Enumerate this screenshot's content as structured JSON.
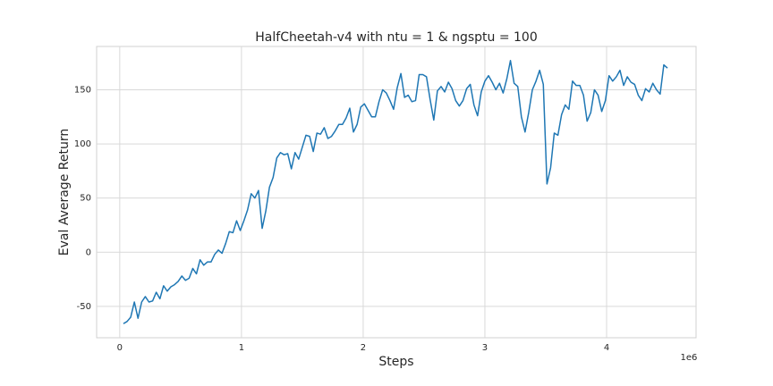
{
  "chart_data": {
    "type": "line",
    "title": "HalfCheetah-v4 with ntu = 1 & ngsptu = 100",
    "x_label": "Steps",
    "y_label": "Eval Average Return",
    "x_offset_label": "1e6",
    "x": [
      0.03,
      0.06,
      0.09,
      0.12,
      0.15,
      0.18,
      0.21,
      0.24,
      0.27,
      0.3,
      0.33,
      0.36,
      0.39,
      0.42,
      0.45,
      0.48,
      0.51,
      0.54,
      0.57,
      0.6,
      0.63,
      0.66,
      0.69,
      0.72,
      0.75,
      0.78,
      0.81,
      0.84,
      0.87,
      0.9,
      0.93,
      0.96,
      0.99,
      1.02,
      1.05,
      1.08,
      1.11,
      1.14,
      1.17,
      1.2,
      1.23,
      1.26,
      1.29,
      1.32,
      1.35,
      1.38,
      1.41,
      1.44,
      1.47,
      1.5,
      1.53,
      1.56,
      1.59,
      1.62,
      1.65,
      1.68,
      1.71,
      1.74,
      1.77,
      1.8,
      1.83,
      1.86,
      1.89,
      1.92,
      1.95,
      1.98,
      2.01,
      2.04,
      2.07,
      2.1,
      2.13,
      2.16,
      2.19,
      2.22,
      2.25,
      2.28,
      2.31,
      2.34,
      2.37,
      2.4,
      2.43,
      2.46,
      2.49,
      2.52,
      2.55,
      2.58,
      2.61,
      2.64,
      2.67,
      2.7,
      2.73,
      2.76,
      2.79,
      2.82,
      2.85,
      2.88,
      2.91,
      2.94,
      2.97,
      3.0,
      3.03,
      3.06,
      3.09,
      3.12,
      3.15,
      3.18,
      3.21,
      3.24,
      3.27,
      3.3,
      3.33,
      3.36,
      3.39,
      3.42,
      3.45,
      3.48,
      3.51,
      3.54,
      3.57,
      3.6,
      3.63,
      3.66,
      3.69,
      3.72,
      3.75,
      3.78,
      3.81,
      3.84,
      3.87,
      3.9,
      3.93,
      3.96,
      3.99,
      4.02,
      4.05,
      4.08,
      4.11,
      4.14,
      4.17,
      4.2,
      4.23,
      4.26,
      4.29,
      4.32,
      4.35,
      4.38,
      4.41,
      4.44,
      4.47,
      4.5
    ],
    "series": [
      {
        "name": "Eval Average Return",
        "color": "#1f77b4",
        "values": [
          -66,
          -64,
          -60,
          -46,
          -61,
          -46,
          -41,
          -46,
          -45,
          -37,
          -43,
          -31,
          -36,
          -32,
          -30,
          -27,
          -22,
          -26,
          -24,
          -15,
          -20,
          -7,
          -12,
          -9,
          -9,
          -2,
          2,
          -1,
          8,
          19,
          18,
          29,
          20,
          29,
          39,
          54,
          50,
          57,
          22,
          38,
          60,
          69,
          87,
          92,
          90,
          91,
          77,
          92,
          86,
          97,
          108,
          107,
          93,
          110,
          109,
          115,
          105,
          107,
          112,
          118,
          118,
          124,
          133,
          111,
          118,
          134,
          137,
          131,
          125,
          125,
          139,
          150,
          147,
          140,
          132,
          152,
          165,
          143,
          145,
          139,
          140,
          164,
          164,
          162,
          141,
          122,
          149,
          153,
          148,
          157,
          151,
          140,
          135,
          140,
          151,
          155,
          136,
          126,
          148,
          158,
          163,
          157,
          150,
          156,
          147,
          160,
          177,
          156,
          153,
          125,
          111,
          129,
          150,
          158,
          168,
          155,
          63,
          78,
          110,
          108,
          127,
          136,
          132,
          158,
          154,
          154,
          145,
          121,
          129,
          150,
          145,
          130,
          140,
          163,
          158,
          162,
          168,
          154,
          162,
          157,
          155,
          145,
          140,
          151,
          148,
          156,
          150,
          146,
          173,
          170
        ]
      }
    ],
    "xlim": [
      -0.19,
      4.735
    ],
    "xticks": [
      0,
      1,
      2,
      3,
      4
    ],
    "ylim": [
      -79,
      190
    ],
    "yticks": [
      -50,
      0,
      50,
      100,
      150
    ],
    "grid": true
  }
}
